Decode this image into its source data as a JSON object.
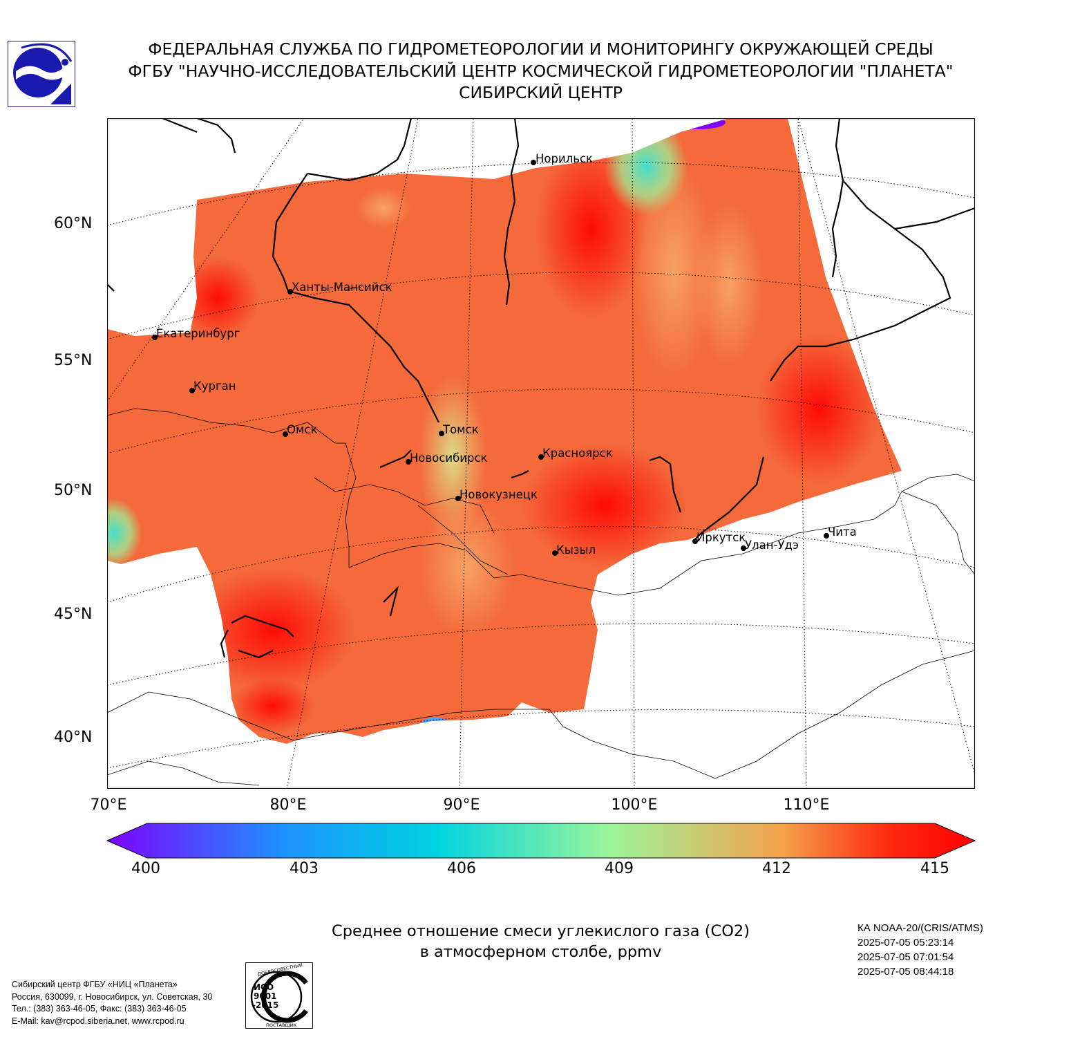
{
  "header": {
    "line1": "ФЕДЕРАЛЬНАЯ СЛУЖБА ПО ГИДРОМЕТЕОРОЛОГИИ И МОНИТОРИНГУ ОКРУЖАЮЩЕЙ СРЕДЫ",
    "line2": "ФГБУ \"НАУЧНО-ИССЛЕДОВАТЕЛЬСКИЙ ЦЕНТР КОСМИЧЕСКОЙ ГИДРОМЕТЕОРОЛОГИИ \"ПЛАНЕТА\"",
    "line3": "СИБИРСКИЙ ЦЕНТР"
  },
  "map": {
    "latitude_labels": [
      "60°N",
      "55°N",
      "50°N",
      "45°N",
      "40°N"
    ],
    "longitude_labels": [
      "70°E",
      "80°E",
      "90°E",
      "100°E",
      "110°E"
    ],
    "cities": [
      {
        "name": "Норильск"
      },
      {
        "name": "Ханты-Мансийск"
      },
      {
        "name": "Екатеринбург"
      },
      {
        "name": "Курган"
      },
      {
        "name": "Омск"
      },
      {
        "name": "Томск"
      },
      {
        "name": "Новосибирск"
      },
      {
        "name": "Красноярск"
      },
      {
        "name": "Новокузнецк"
      },
      {
        "name": "Иркутск"
      },
      {
        "name": "Улан-Удэ"
      },
      {
        "name": "Чита"
      },
      {
        "name": "Кызыл"
      }
    ]
  },
  "colorbar": {
    "min": 400,
    "max": 415,
    "ticks": [
      "400",
      "403",
      "406",
      "409",
      "412",
      "415"
    ],
    "colors": [
      "#7f00ff",
      "#1e90ff",
      "#00d4e0",
      "#9cf59a",
      "#f5a04a",
      "#ff2a10",
      "#ff0000"
    ]
  },
  "caption": {
    "line1": "Среднее отношение смеси углекислого газа (CO2)",
    "line2": "в атмосферном столбе, ppmv"
  },
  "satellite": {
    "name": "КА NOAA-20/(CRIS/ATMS)",
    "times": [
      "2025-07-05 05:23:14",
      "2025-07-05 07:01:54",
      "2025-07-05 08:44:18"
    ]
  },
  "footer": {
    "address": [
      "Сибирский центр ФГБУ «НИЦ «Планета»",
      "Россия, 630099, г. Новосибирск, ул. Советская, 30",
      "Тел.: (383) 363-46-05, Факс: (383) 363-46-05",
      "E-Mail: kav@rcpod.siberia.net, www.rcpod.ru"
    ],
    "iso_badge": {
      "top_text": "ДОБРОСОВЕСТНЫЙ",
      "line1": "ИСО",
      "line2": "9001",
      "line3": "-2015",
      "bottom_text": "ПОСТАВЩИК"
    }
  }
}
